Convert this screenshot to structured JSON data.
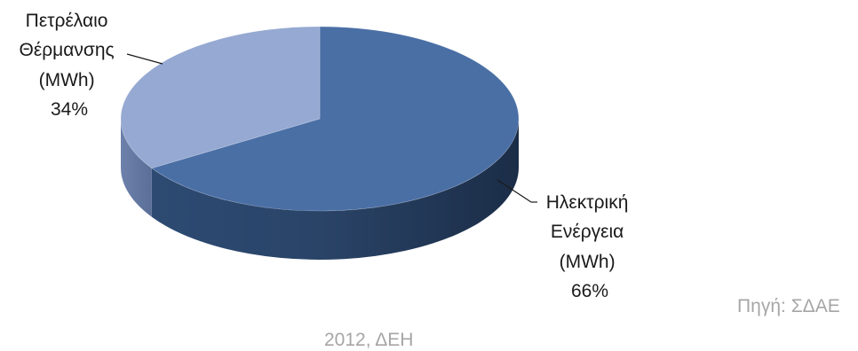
{
  "chart_data": {
    "type": "pie",
    "style": "3d",
    "slices": [
      {
        "label_lines": [
          "Ηλεκτρική",
          "Ενέργεια",
          "(MWh)"
        ],
        "percent_label": "66%",
        "value": 66,
        "color": "#4a6fa5"
      },
      {
        "label_lines": [
          "Πετρέλαιο",
          "Θέρμανσης",
          "(MWh)"
        ],
        "percent_label": "34%",
        "value": 34,
        "color": "#95a9d2"
      }
    ]
  },
  "source": {
    "line1": "Πηγή: ΣΔΑΕ",
    "line2": "2012, ΔΕΗ"
  }
}
